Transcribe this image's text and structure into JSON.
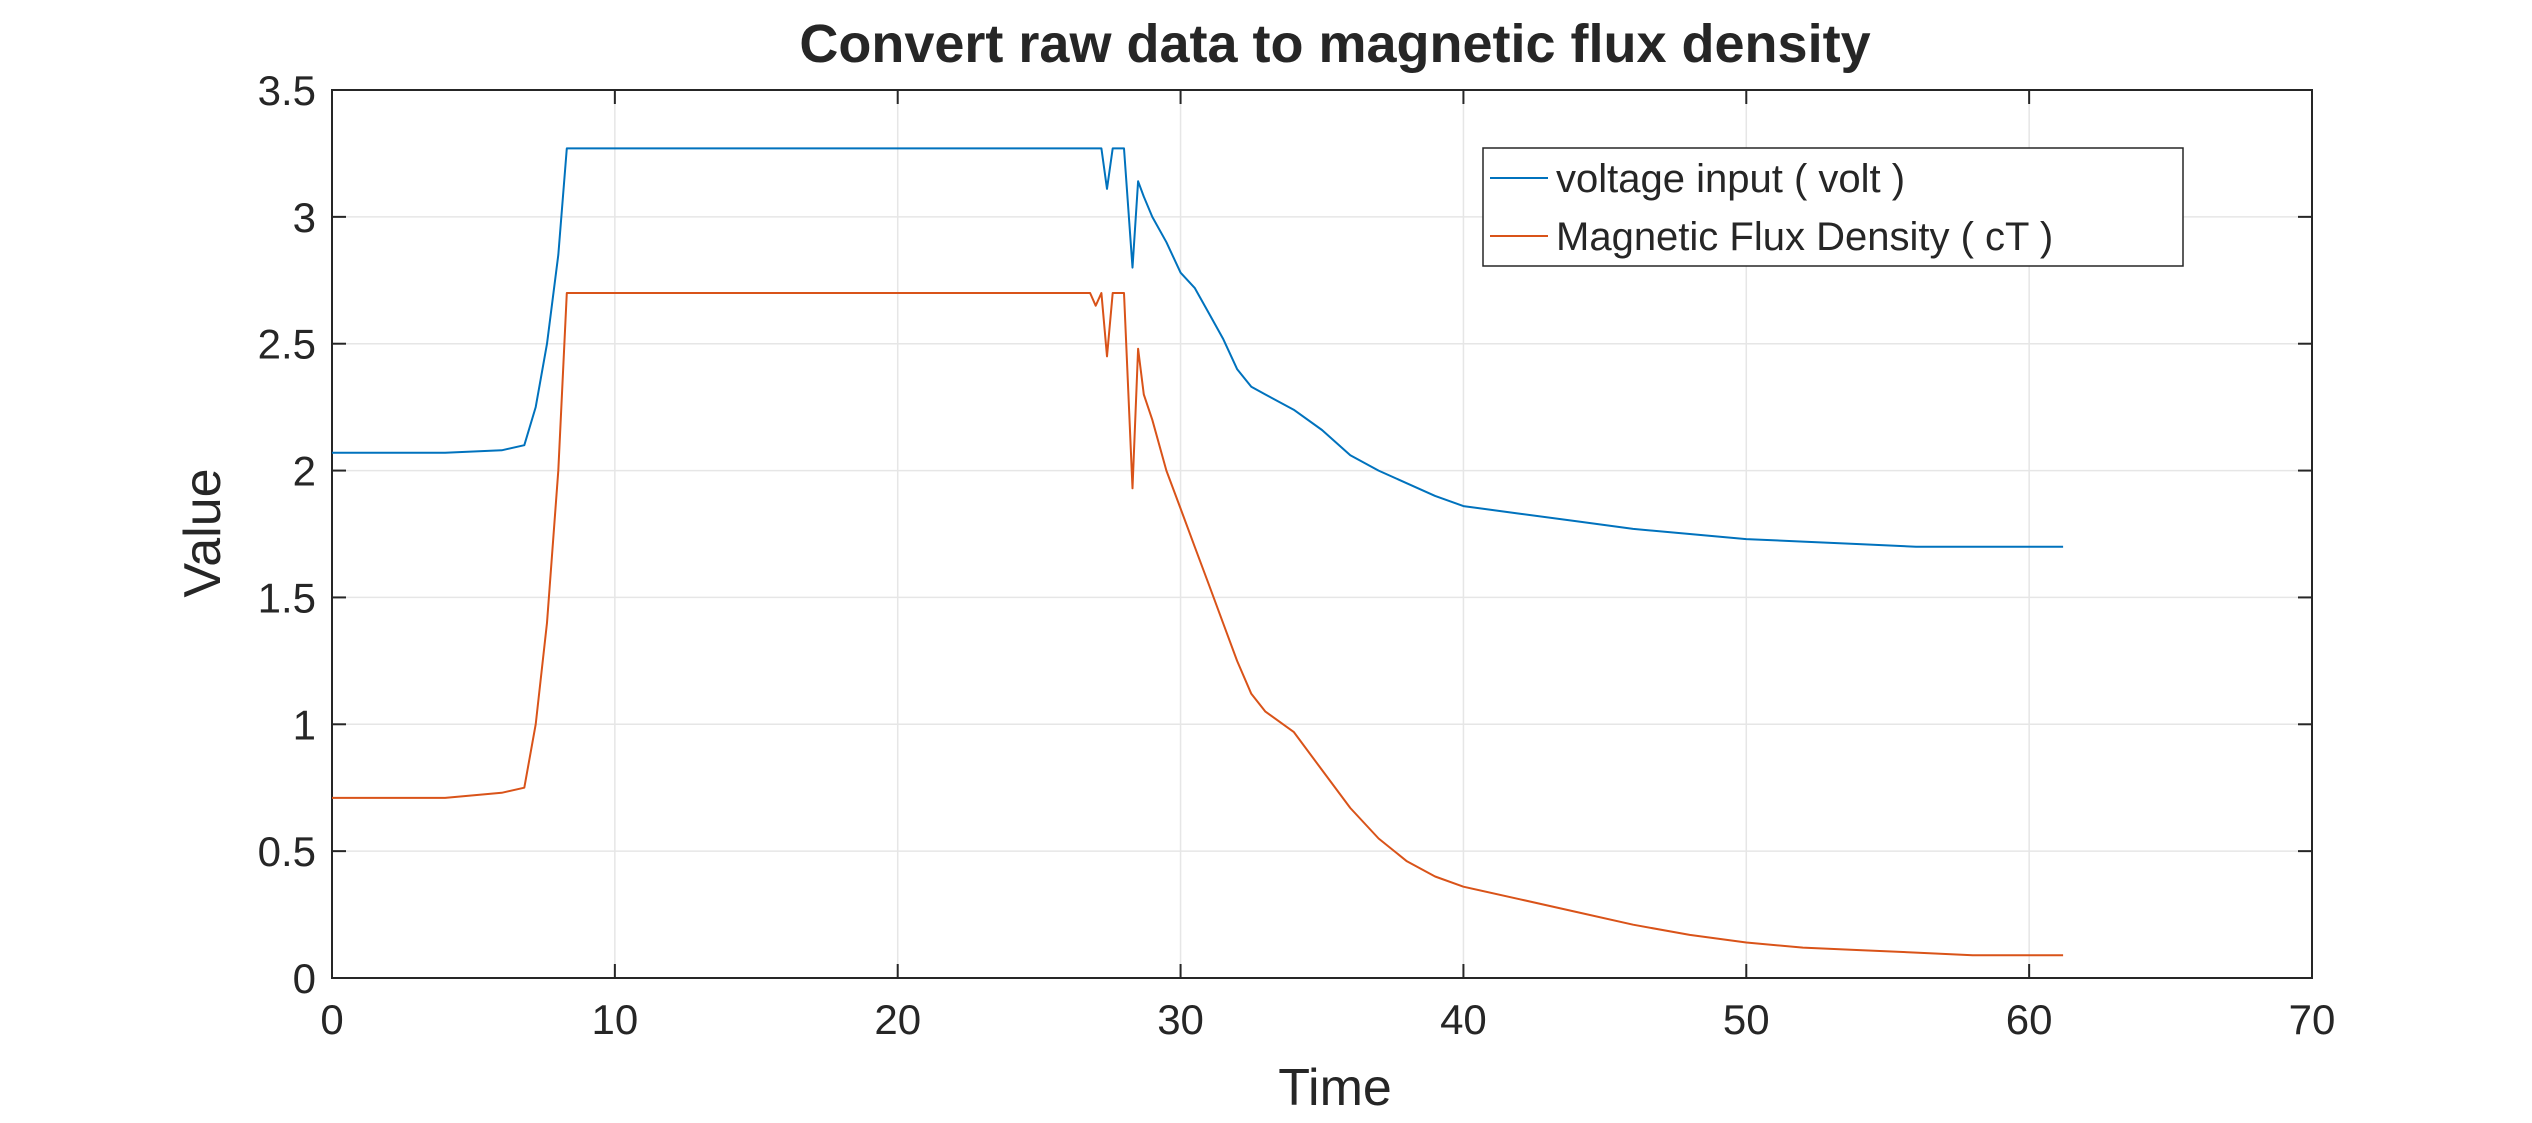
{
  "chart_data": {
    "type": "line",
    "title": "Convert raw data to magnetic flux density",
    "xlabel": "Time",
    "ylabel": "Value",
    "xlim": [
      0,
      70
    ],
    "ylim": [
      0,
      3.5
    ],
    "xticks": [
      0,
      10,
      20,
      30,
      40,
      50,
      60,
      70
    ],
    "yticks": [
      0,
      0.5,
      1,
      1.5,
      2,
      2.5,
      3,
      3.5
    ],
    "xtick_labels": [
      "0",
      "10",
      "20",
      "30",
      "40",
      "50",
      "60",
      "70"
    ],
    "ytick_labels": [
      "0",
      "0.5",
      "1",
      "1.5",
      "2",
      "2.5",
      "3",
      "3.5"
    ],
    "grid": true,
    "legend_position": "top-right",
    "series": [
      {
        "name": "voltage input ( volt )",
        "color": "#0072BD",
        "x": [
          0,
          2,
          4,
          6,
          6.8,
          7.2,
          7.6,
          8.0,
          8.3,
          8.6,
          10,
          15,
          20,
          25,
          27.2,
          27.4,
          27.6,
          28.0,
          28.3,
          28.5,
          28.7,
          29.0,
          29.5,
          30.0,
          30.5,
          31.0,
          31.5,
          32.0,
          32.5,
          33.0,
          34.0,
          35.0,
          36.0,
          37.0,
          38.0,
          39.0,
          40.0,
          42.0,
          44.0,
          46.0,
          48.0,
          50.0,
          52.0,
          54.0,
          56.0,
          58.0,
          60.0,
          61.2
        ],
        "y": [
          2.07,
          2.07,
          2.07,
          2.08,
          2.1,
          2.25,
          2.5,
          2.85,
          3.27,
          3.27,
          3.27,
          3.27,
          3.27,
          3.27,
          3.27,
          3.11,
          3.27,
          3.27,
          2.8,
          3.14,
          3.08,
          3.0,
          2.9,
          2.78,
          2.72,
          2.62,
          2.52,
          2.4,
          2.33,
          2.3,
          2.24,
          2.16,
          2.06,
          2.0,
          1.95,
          1.9,
          1.86,
          1.83,
          1.8,
          1.77,
          1.75,
          1.73,
          1.72,
          1.71,
          1.7,
          1.7,
          1.7,
          1.7
        ]
      },
      {
        "name": "Magnetic Flux Density ( cT )",
        "color": "#D95319",
        "x": [
          0,
          2,
          4,
          6,
          6.8,
          7.2,
          7.6,
          8.0,
          8.3,
          8.6,
          10,
          15,
          20,
          25,
          26.8,
          27.0,
          27.2,
          27.4,
          27.6,
          28.0,
          28.3,
          28.5,
          28.7,
          29.0,
          29.5,
          30.0,
          30.5,
          31.0,
          31.5,
          32.0,
          32.5,
          33.0,
          34.0,
          35.0,
          36.0,
          37.0,
          38.0,
          39.0,
          40.0,
          42.0,
          44.0,
          46.0,
          48.0,
          50.0,
          52.0,
          54.0,
          56.0,
          58.0,
          60.0,
          61.2
        ],
        "y": [
          0.71,
          0.71,
          0.71,
          0.73,
          0.75,
          1.0,
          1.4,
          2.0,
          2.7,
          2.7,
          2.7,
          2.7,
          2.7,
          2.7,
          2.7,
          2.65,
          2.7,
          2.45,
          2.7,
          2.7,
          1.93,
          2.48,
          2.3,
          2.2,
          2.0,
          1.85,
          1.7,
          1.55,
          1.4,
          1.25,
          1.12,
          1.05,
          0.97,
          0.82,
          0.67,
          0.55,
          0.46,
          0.4,
          0.36,
          0.31,
          0.26,
          0.21,
          0.17,
          0.14,
          0.12,
          0.11,
          0.1,
          0.09,
          0.09,
          0.09
        ]
      }
    ]
  }
}
